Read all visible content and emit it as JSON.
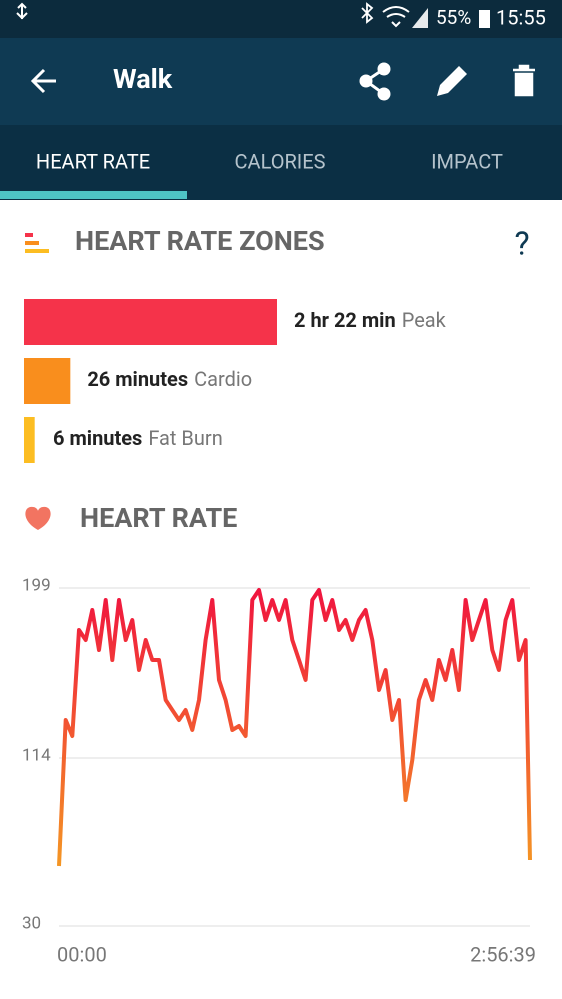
{
  "status_bar": {
    "battery": "55%",
    "time": "15:55"
  },
  "header": {
    "title": "Walk"
  },
  "tabs": [
    "HEART RATE",
    "CALORIES",
    "IMPACT"
  ],
  "zones_section": {
    "title": "HEART RATE ZONES",
    "help": "?",
    "zones": [
      {
        "duration": "2 hr 22 min",
        "name": "Peak",
        "minutes": 142,
        "color": "#f5334a"
      },
      {
        "duration": "26 minutes",
        "name": "Cardio",
        "minutes": 26,
        "color": "#f98e1d"
      },
      {
        "duration": "6 minutes",
        "name": "Fat Burn",
        "minutes": 6,
        "color": "#fcbd22"
      }
    ]
  },
  "chart_data": {
    "type": "line",
    "title": "HEART RATE",
    "x": [
      0,
      150,
      300,
      450,
      600,
      750,
      900,
      1050,
      1200,
      1350,
      1500,
      1650,
      1800,
      1950,
      2100,
      2250,
      2400,
      2550,
      2700,
      2850,
      3000,
      3150,
      3300,
      3450,
      3600,
      3750,
      3900,
      4050,
      4200,
      4350,
      4500,
      4650,
      4800,
      4950,
      5100,
      5250,
      5400,
      5550,
      5700,
      5850,
      6000,
      6150,
      6300,
      6450,
      6600,
      6750,
      6900,
      7050,
      7200,
      7350,
      7500,
      7650,
      7800,
      7950,
      8100,
      8250,
      8400,
      8550,
      8700,
      8850,
      9000,
      9150,
      9300,
      9450,
      9600,
      9750,
      9900,
      10050,
      10200,
      10350,
      10500,
      10599
    ],
    "values": [
      60,
      133,
      125,
      178,
      173,
      188,
      168,
      193,
      163,
      193,
      173,
      183,
      158,
      173,
      163,
      163,
      143,
      138,
      133,
      138,
      128,
      143,
      173,
      193,
      153,
      143,
      128,
      130,
      125,
      193,
      198,
      183,
      193,
      183,
      193,
      173,
      163,
      153,
      193,
      198,
      183,
      193,
      178,
      183,
      173,
      183,
      188,
      173,
      148,
      158,
      133,
      143,
      93,
      113,
      143,
      153,
      143,
      163,
      153,
      168,
      148,
      193,
      173,
      183,
      193,
      168,
      158,
      183,
      193,
      163,
      173,
      63
    ],
    "xlim": [
      0,
      10599
    ],
    "xticks": [
      {
        "value": 0,
        "label": "00:00"
      },
      {
        "value": 10599,
        "label": "2:56:39"
      }
    ],
    "ylim": [
      30,
      199
    ],
    "yticks": [
      30,
      114,
      199
    ],
    "grid": true,
    "gradient_colors": [
      "#f0143f",
      "#f5b21e"
    ]
  }
}
